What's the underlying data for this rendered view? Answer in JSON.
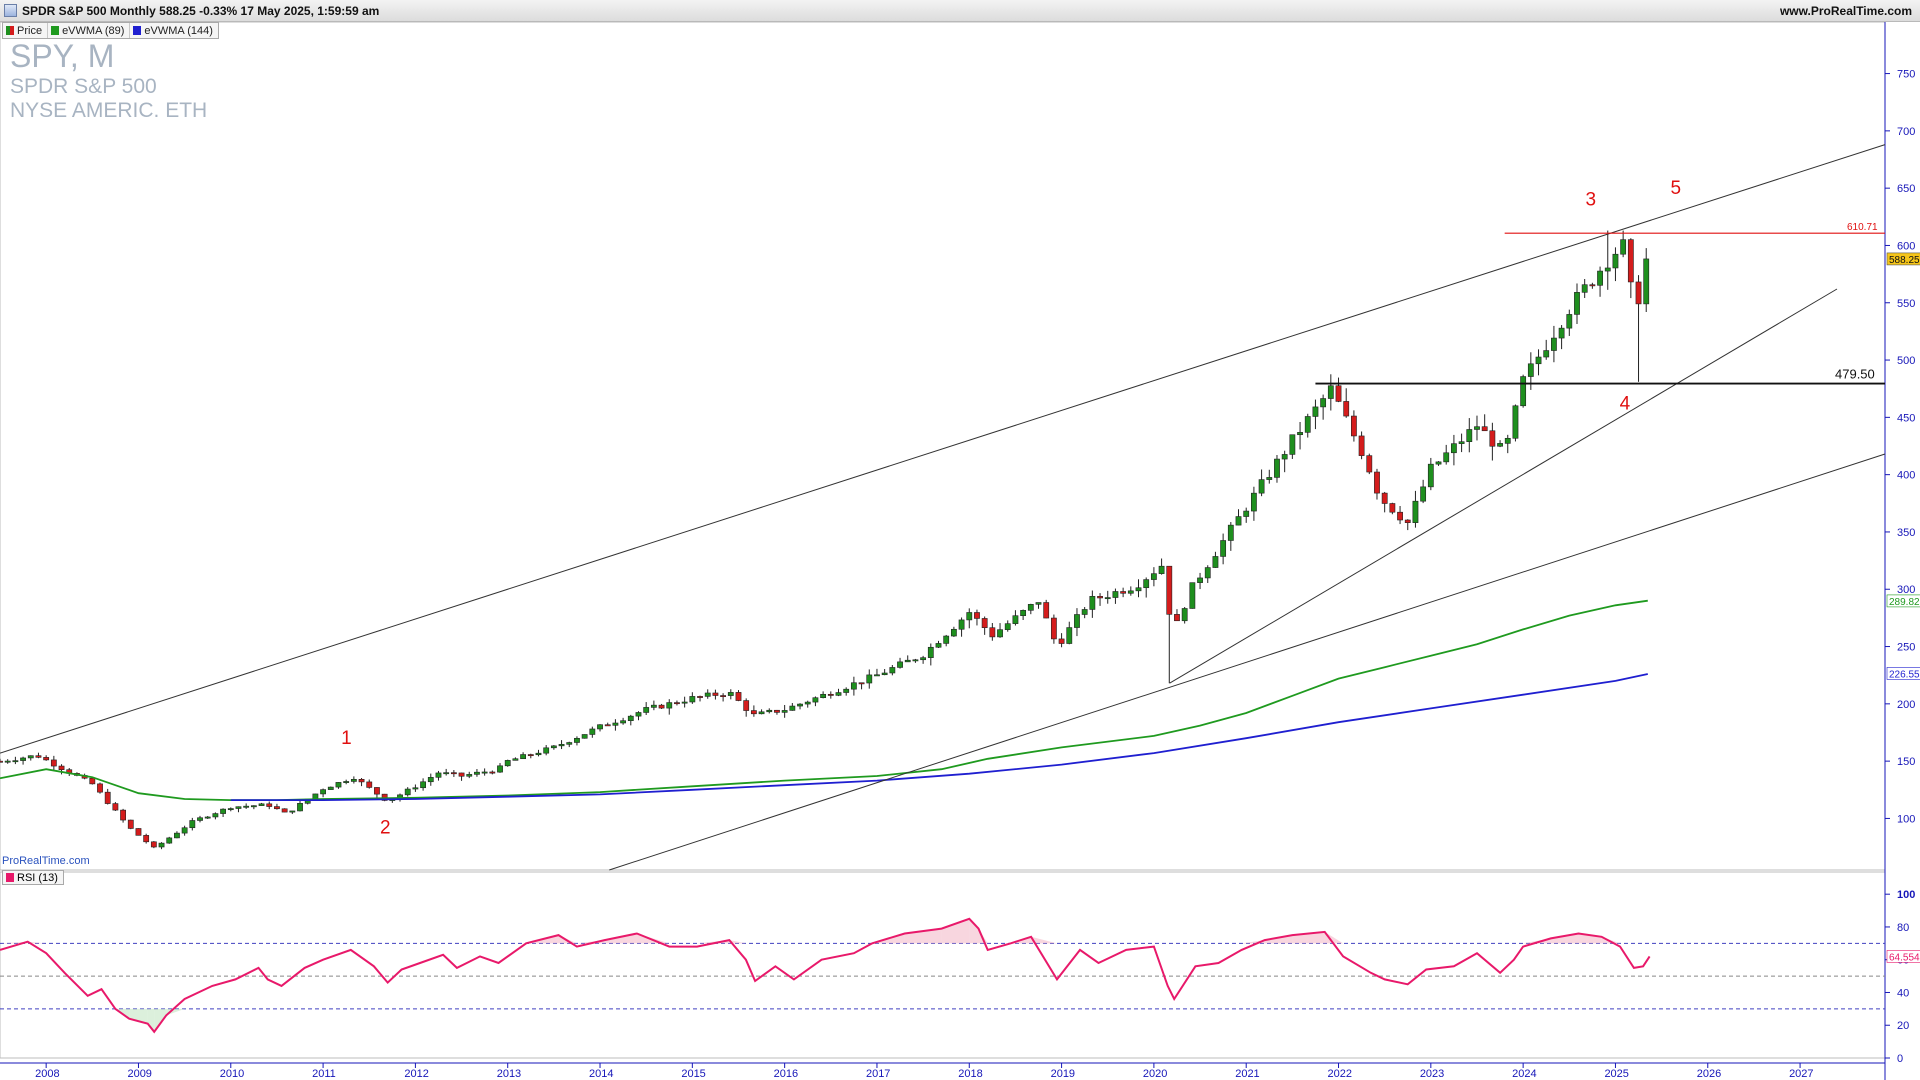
{
  "header": {
    "title": "SPDR S&P 500 Monthly 588.25 -0.33% 17 May 2025, 1:59:59 am",
    "site": "www.ProRealTime.com"
  },
  "legend": [
    {
      "label": "Price",
      "color": "#d41c1c"
    },
    {
      "label": "eVWMA (89)",
      "color": "#1f9a1f"
    },
    {
      "label": "eVWMA (144)",
      "color": "#1f1fd0"
    }
  ],
  "symbol": {
    "code": "SPY, M",
    "name": "SPDR S&P 500",
    "exchange": "NYSE AMERIC. ETH"
  },
  "watermark": "ProRealTime.com",
  "rsi_legend": "RSI (13)",
  "colors": {
    "up": "#1e8f1e",
    "down": "#d41c1c",
    "ma89": "#1f9a1f",
    "ma144": "#1f1fd0",
    "rsi": "#e8196a",
    "annot": "#e01010",
    "axis": "#1616b8"
  },
  "chart_data": [
    {
      "type": "candlestick",
      "title": "SPDR S&P 500 Monthly",
      "x_tick_labels": [
        "2008",
        "2009",
        "2010",
        "2011",
        "2012",
        "2013",
        "2014",
        "2015",
        "2016",
        "2017",
        "2018",
        "2019",
        "2020",
        "2021",
        "2022",
        "2023",
        "2024",
        "2025",
        "2026",
        "2027"
      ],
      "y_tick_labels": [
        "100",
        "150",
        "200",
        "250",
        "300",
        "350",
        "400",
        "450",
        "500",
        "550",
        "600",
        "650",
        "700",
        "750"
      ],
      "ylim": [
        55,
        795
      ],
      "xlim": [
        2007.5,
        2027.92
      ],
      "last_price": "588.25",
      "ma_values": {
        "ema89_last": "289.82",
        "ema144_last": "226.55"
      },
      "resistance": {
        "value": "610.71",
        "from": 2023.8,
        "to": 2027.92
      },
      "support": {
        "value": "479.50",
        "from": 2021.75,
        "to": 2027.92
      },
      "wave_labels": [
        {
          "text": "1",
          "x": 2011.25,
          "y": 170
        },
        {
          "text": "2",
          "x": 2011.67,
          "y": 92
        },
        {
          "text": "3",
          "x": 2024.73,
          "y": 640
        },
        {
          "text": "5",
          "x": 2025.65,
          "y": 650
        },
        {
          "text": "4",
          "x": 2025.1,
          "y": 462
        }
      ],
      "trendlines": [
        {
          "x1": 2007.5,
          "y1": 157,
          "x2": 2027.92,
          "y2": 688
        },
        {
          "x1": 2014.1,
          "y1": 55,
          "x2": 2027.92,
          "y2": 418
        },
        {
          "x1": 2020.17,
          "y1": 218,
          "x2": 2027.4,
          "y2": 562
        }
      ],
      "anchors": [
        [
          2007.5,
          150
        ],
        [
          2007.9,
          155
        ],
        [
          2008.5,
          130
        ],
        [
          2008.9,
          92
        ],
        [
          2009.17,
          74
        ],
        [
          2009.6,
          98
        ],
        [
          2010.0,
          110
        ],
        [
          2010.4,
          112
        ],
        [
          2010.6,
          104
        ],
        [
          2011.0,
          126
        ],
        [
          2011.33,
          136
        ],
        [
          2011.7,
          115
        ],
        [
          2012.0,
          128
        ],
        [
          2012.25,
          140
        ],
        [
          2012.5,
          137
        ],
        [
          2012.9,
          143
        ],
        [
          2013.0,
          150
        ],
        [
          2013.5,
          162
        ],
        [
          2014.0,
          180
        ],
        [
          2014.5,
          195
        ],
        [
          2015.0,
          205
        ],
        [
          2015.4,
          210
        ],
        [
          2015.66,
          190
        ],
        [
          2016.0,
          195
        ],
        [
          2016.5,
          210
        ],
        [
          2017.0,
          225
        ],
        [
          2017.5,
          243
        ],
        [
          2018.0,
          280
        ],
        [
          2018.25,
          260
        ],
        [
          2018.75,
          290
        ],
        [
          2018.95,
          250
        ],
        [
          2019.3,
          290
        ],
        [
          2019.8,
          303
        ],
        [
          2020.1,
          322
        ],
        [
          2020.2,
          260
        ],
        [
          2020.4,
          300
        ],
        [
          2020.9,
          360
        ],
        [
          2021.5,
          430
        ],
        [
          2021.92,
          475
        ],
        [
          2022.3,
          412
        ],
        [
          2022.45,
          380
        ],
        [
          2022.75,
          358
        ],
        [
          2023.0,
          405
        ],
        [
          2023.5,
          443
        ],
        [
          2023.8,
          418
        ],
        [
          2024.0,
          482
        ],
        [
          2024.5,
          545
        ],
        [
          2024.92,
          588
        ],
        [
          2025.08,
          601
        ],
        [
          2025.17,
          560
        ],
        [
          2025.25,
          555
        ],
        [
          2025.33,
          590
        ]
      ],
      "rsi": {
        "yrange": [
          0,
          105
        ],
        "tick_labels": [
          "0",
          "20",
          "40",
          "60",
          "80",
          "100"
        ],
        "levels": [
          70,
          50,
          30
        ],
        "last_value": "64.554",
        "points": [
          [
            2007.5,
            66
          ],
          [
            2007.8,
            71
          ],
          [
            2008.0,
            64
          ],
          [
            2008.2,
            52
          ],
          [
            2008.45,
            38
          ],
          [
            2008.6,
            42
          ],
          [
            2008.75,
            30
          ],
          [
            2008.9,
            24
          ],
          [
            2009.1,
            21
          ],
          [
            2009.17,
            16
          ],
          [
            2009.3,
            26
          ],
          [
            2009.5,
            36
          ],
          [
            2009.8,
            44
          ],
          [
            2010.05,
            48
          ],
          [
            2010.3,
            55
          ],
          [
            2010.4,
            48
          ],
          [
            2010.55,
            44
          ],
          [
            2010.8,
            55
          ],
          [
            2011.0,
            60
          ],
          [
            2011.3,
            66
          ],
          [
            2011.55,
            56
          ],
          [
            2011.7,
            46
          ],
          [
            2011.85,
            54
          ],
          [
            2012.05,
            58
          ],
          [
            2012.3,
            63
          ],
          [
            2012.45,
            55
          ],
          [
            2012.7,
            62
          ],
          [
            2012.9,
            58
          ],
          [
            2013.2,
            70
          ],
          [
            2013.55,
            75
          ],
          [
            2013.75,
            68
          ],
          [
            2014.05,
            72
          ],
          [
            2014.4,
            76
          ],
          [
            2014.75,
            68
          ],
          [
            2015.05,
            68
          ],
          [
            2015.4,
            72
          ],
          [
            2015.58,
            60
          ],
          [
            2015.68,
            47
          ],
          [
            2015.9,
            56
          ],
          [
            2016.1,
            48
          ],
          [
            2016.4,
            60
          ],
          [
            2016.75,
            64
          ],
          [
            2016.95,
            70
          ],
          [
            2017.3,
            76
          ],
          [
            2017.7,
            79
          ],
          [
            2018.0,
            85
          ],
          [
            2018.1,
            79
          ],
          [
            2018.2,
            66
          ],
          [
            2018.45,
            70
          ],
          [
            2018.67,
            74
          ],
          [
            2018.95,
            48
          ],
          [
            2019.2,
            66
          ],
          [
            2019.4,
            58
          ],
          [
            2019.7,
            66
          ],
          [
            2020.0,
            68
          ],
          [
            2020.15,
            44
          ],
          [
            2020.22,
            36
          ],
          [
            2020.45,
            56
          ],
          [
            2020.7,
            58
          ],
          [
            2020.95,
            66
          ],
          [
            2021.2,
            72
          ],
          [
            2021.5,
            75
          ],
          [
            2021.85,
            77
          ],
          [
            2022.05,
            62
          ],
          [
            2022.35,
            52
          ],
          [
            2022.5,
            48
          ],
          [
            2022.75,
            45
          ],
          [
            2022.95,
            54
          ],
          [
            2023.25,
            56
          ],
          [
            2023.5,
            64
          ],
          [
            2023.75,
            52
          ],
          [
            2023.9,
            60
          ],
          [
            2024.0,
            68
          ],
          [
            2024.3,
            73
          ],
          [
            2024.6,
            76
          ],
          [
            2024.85,
            74
          ],
          [
            2025.05,
            68
          ],
          [
            2025.2,
            55
          ],
          [
            2025.3,
            56
          ],
          [
            2025.37,
            62
          ]
        ]
      }
    }
  ]
}
